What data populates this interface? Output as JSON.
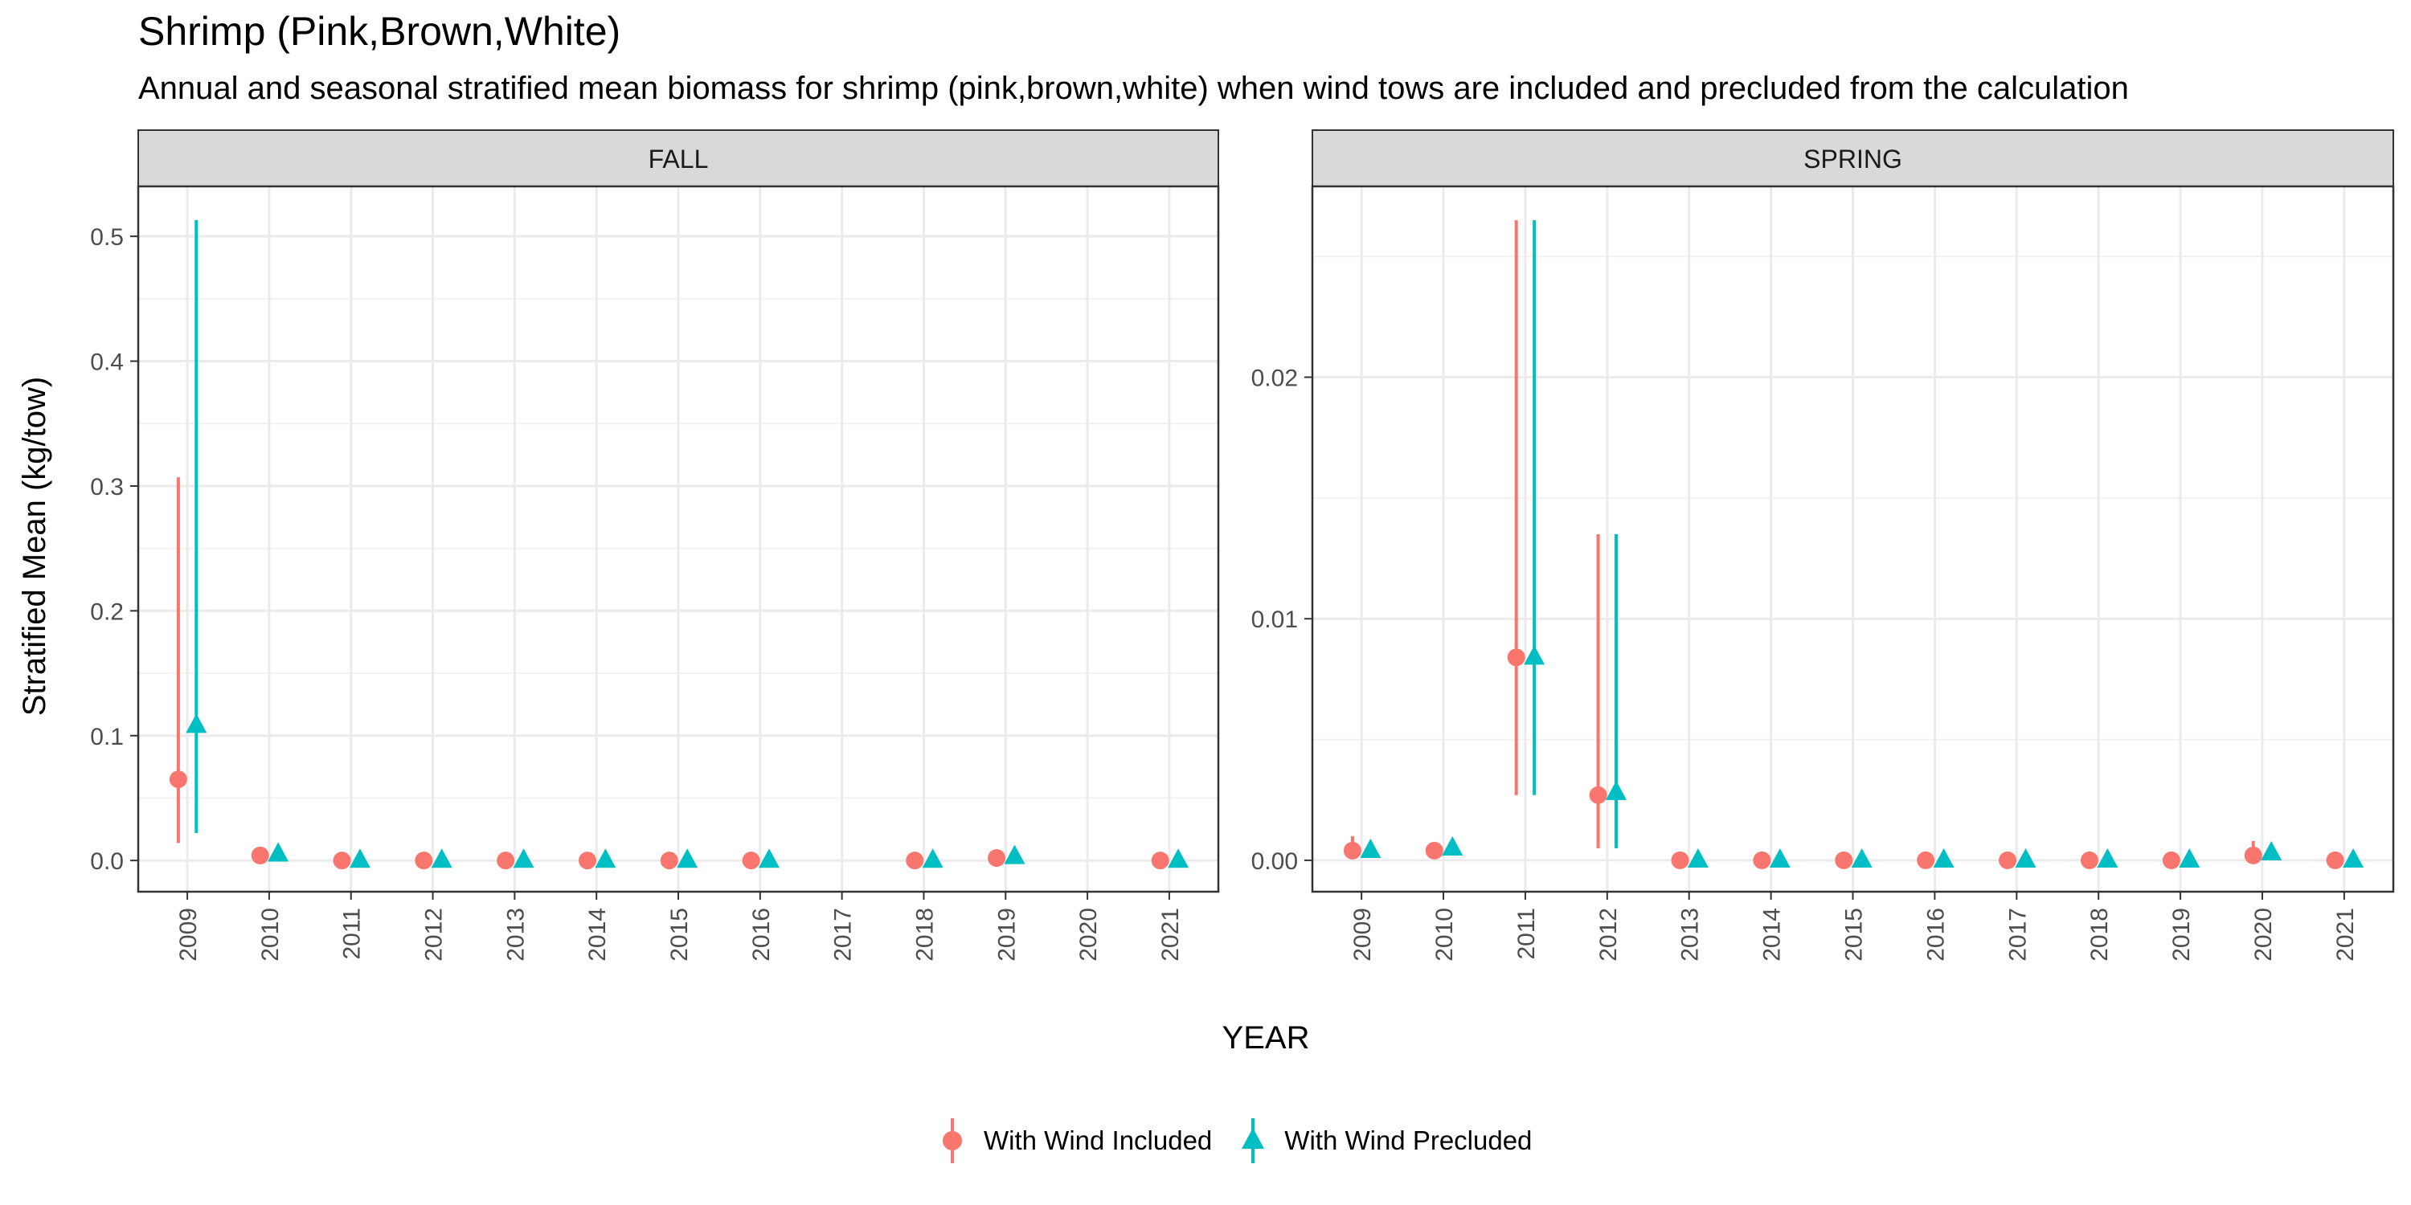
{
  "chart_data": {
    "type": "scatter",
    "title": "Shrimp (Pink,Brown,White)",
    "subtitle": "Annual and seasonal stratified mean biomass for shrimp (pink,brown,white) when wind tows are included and precluded from the calculation",
    "xlabel": "YEAR",
    "ylabel": "Stratified Mean (kg/tow)",
    "grid": true,
    "legend_position": "bottom",
    "colors": {
      "included": "#F8766D",
      "precluded": "#00BFC4"
    },
    "series": [
      {
        "name": "With Wind Included",
        "marker": "circle"
      },
      {
        "name": "With Wind Precluded",
        "marker": "triangle"
      }
    ],
    "panels": [
      {
        "label": "FALL",
        "x": [
          "2009",
          "2010",
          "2011",
          "2012",
          "2013",
          "2014",
          "2015",
          "2016",
          "2017",
          "2018",
          "2019",
          "2020",
          "2021"
        ],
        "ylim": [
          -0.025,
          0.54
        ],
        "yticks": [
          0.0,
          0.1,
          0.2,
          0.3,
          0.4,
          0.5
        ],
        "ytick_labels": [
          "0.0",
          "0.1",
          "0.2",
          "0.3",
          "0.4",
          "0.5"
        ],
        "included": [
          {
            "x": "2009",
            "y": 0.065,
            "lo": 0.014,
            "hi": 0.307
          },
          {
            "x": "2010",
            "y": 0.004
          },
          {
            "x": "2011",
            "y": 0.0
          },
          {
            "x": "2012",
            "y": 0.0
          },
          {
            "x": "2013",
            "y": 0.0
          },
          {
            "x": "2014",
            "y": 0.0
          },
          {
            "x": "2015",
            "y": 0.0
          },
          {
            "x": "2016",
            "y": 0.0
          },
          {
            "x": "2018",
            "y": 0.0
          },
          {
            "x": "2019",
            "y": 0.002
          },
          {
            "x": "2021",
            "y": 0.0
          }
        ],
        "precluded": [
          {
            "x": "2009",
            "y": 0.108,
            "lo": 0.022,
            "hi": 0.513
          },
          {
            "x": "2010",
            "y": 0.005
          },
          {
            "x": "2011",
            "y": 0.0
          },
          {
            "x": "2012",
            "y": 0.0
          },
          {
            "x": "2013",
            "y": 0.0
          },
          {
            "x": "2014",
            "y": 0.0
          },
          {
            "x": "2015",
            "y": 0.0
          },
          {
            "x": "2016",
            "y": 0.0
          },
          {
            "x": "2018",
            "y": 0.0
          },
          {
            "x": "2019",
            "y": 0.003
          },
          {
            "x": "2021",
            "y": 0.0
          }
        ]
      },
      {
        "label": "SPRING",
        "x": [
          "2009",
          "2010",
          "2011",
          "2012",
          "2013",
          "2014",
          "2015",
          "2016",
          "2017",
          "2018",
          "2019",
          "2020",
          "2021"
        ],
        "ylim": [
          -0.0013,
          0.0279
        ],
        "yticks": [
          0.0,
          0.01,
          0.02
        ],
        "ytick_labels": [
          "0.00",
          "0.01",
          "0.02"
        ],
        "included": [
          {
            "x": "2009",
            "y": 0.0004,
            "lo": 0.0001,
            "hi": 0.001
          },
          {
            "x": "2010",
            "y": 0.0004
          },
          {
            "x": "2011",
            "y": 0.0084,
            "lo": 0.0027,
            "hi": 0.0265
          },
          {
            "x": "2012",
            "y": 0.0027,
            "lo": 0.0005,
            "hi": 0.0135
          },
          {
            "x": "2013",
            "y": 0.0
          },
          {
            "x": "2014",
            "y": 0.0
          },
          {
            "x": "2015",
            "y": 0.0
          },
          {
            "x": "2016",
            "y": 0.0
          },
          {
            "x": "2017",
            "y": 0.0
          },
          {
            "x": "2018",
            "y": 0.0
          },
          {
            "x": "2019",
            "y": 0.0
          },
          {
            "x": "2020",
            "y": 0.0002,
            "lo": 0.0,
            "hi": 0.0008
          },
          {
            "x": "2021",
            "y": 0.0
          }
        ],
        "precluded": [
          {
            "x": "2009",
            "y": 0.0004
          },
          {
            "x": "2010",
            "y": 0.0005
          },
          {
            "x": "2011",
            "y": 0.0084,
            "lo": 0.0027,
            "hi": 0.0265
          },
          {
            "x": "2012",
            "y": 0.0028,
            "lo": 0.0005,
            "hi": 0.0135
          },
          {
            "x": "2013",
            "y": 0.0
          },
          {
            "x": "2014",
            "y": 0.0
          },
          {
            "x": "2015",
            "y": 0.0
          },
          {
            "x": "2016",
            "y": 0.0
          },
          {
            "x": "2017",
            "y": 0.0
          },
          {
            "x": "2018",
            "y": 0.0
          },
          {
            "x": "2019",
            "y": 0.0
          },
          {
            "x": "2020",
            "y": 0.0003
          },
          {
            "x": "2021",
            "y": 0.0
          }
        ]
      }
    ]
  }
}
